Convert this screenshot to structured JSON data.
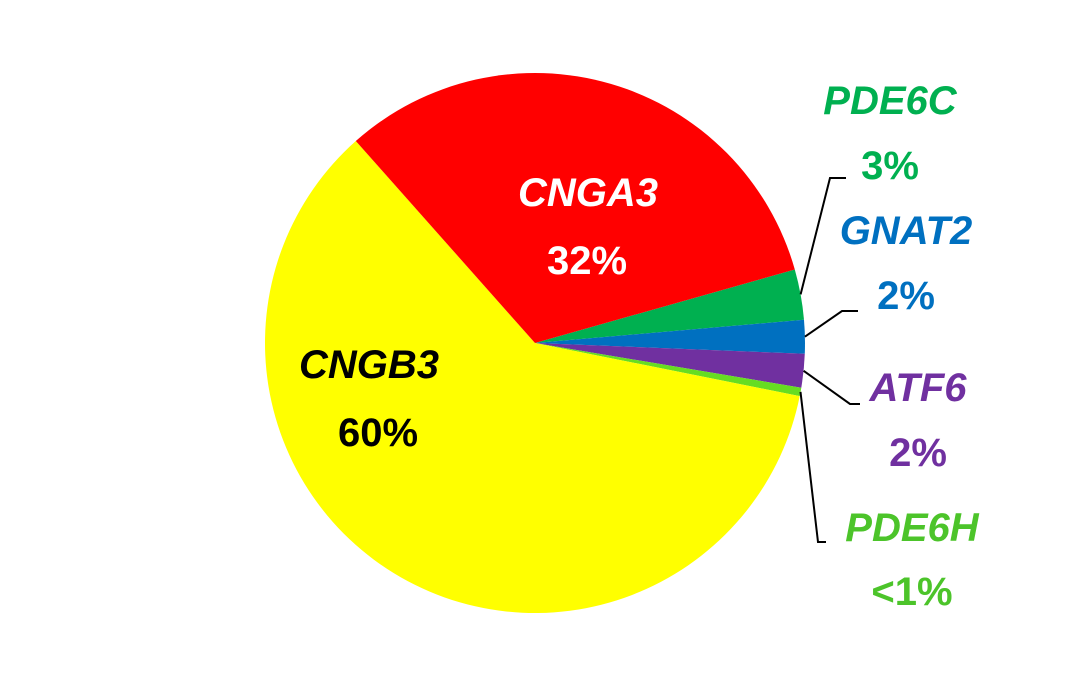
{
  "chart_data": {
    "type": "pie",
    "slices": [
      {
        "name": "CNGB3",
        "value": 60,
        "value_label": "60%",
        "color": "#FFFF00",
        "label_color": "#000000"
      },
      {
        "name": "CNGA3",
        "value": 32,
        "value_label": "32%",
        "color": "#FF0000",
        "label_color": "#FFFFFF"
      },
      {
        "name": "PDE6C",
        "value": 3,
        "value_label": "3%",
        "color": "#00B050",
        "label_color": "#00B050"
      },
      {
        "name": "GNAT2",
        "value": 2,
        "value_label": "2%",
        "color": "#0070C0",
        "label_color": "#0070C0"
      },
      {
        "name": "ATF6",
        "value": 2,
        "value_label": "2%",
        "color": "#7030A0",
        "label_color": "#7030A0"
      },
      {
        "name": "PDE6H",
        "value": 0.5,
        "value_label": "<1%",
        "color": "#66DD22",
        "label_color": "#4CC42A"
      }
    ],
    "leader_line_color": "#000000"
  }
}
